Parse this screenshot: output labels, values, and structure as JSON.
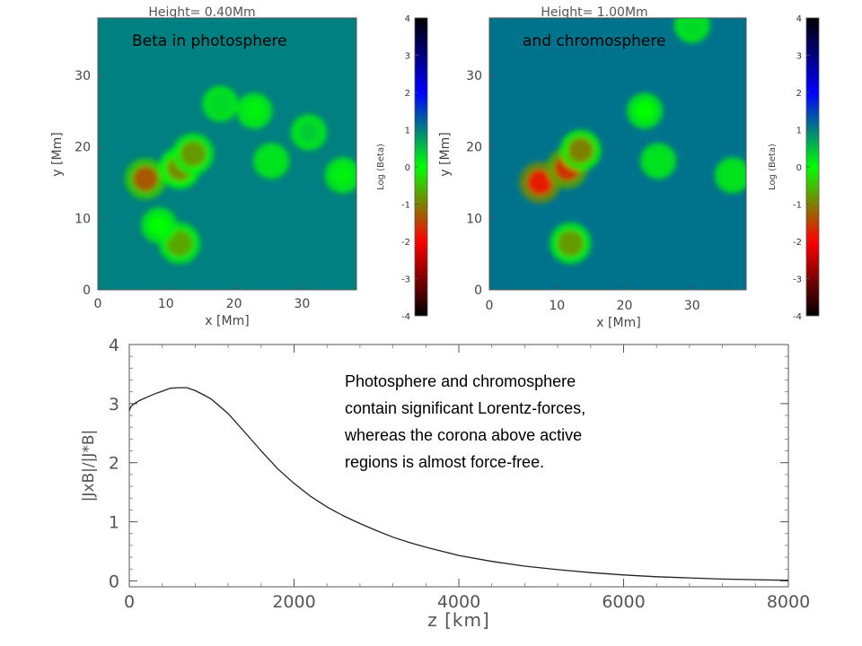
{
  "chart_data": [
    {
      "type": "heatmap",
      "title": "Height= 0.40Mm",
      "annotation": "Beta in photosphere",
      "xlabel": "x [Mm]",
      "ylabel": "y [Mm]",
      "xlim": [
        0,
        38
      ],
      "ylim": [
        0,
        38
      ],
      "xticks": [
        "0",
        "10",
        "20",
        "30"
      ],
      "yticks": [
        "0",
        "10",
        "20",
        "30"
      ],
      "colorbar": {
        "label": "Log (Beta)",
        "range": [
          -4,
          4
        ],
        "ticks": [
          "-4",
          "-3",
          "-2",
          "-1",
          "0",
          "1",
          "2",
          "3",
          "4"
        ],
        "colors": [
          "#000000",
          "#ff0000",
          "#00ff00",
          "#0000ff",
          "#000000"
        ]
      },
      "background_log_beta": 1.0,
      "blobs": [
        {
          "x": 7,
          "y": 15.5,
          "log_beta": -1.3
        },
        {
          "x": 12,
          "y": 17,
          "log_beta": -0.9
        },
        {
          "x": 14,
          "y": 19,
          "log_beta": -0.8
        },
        {
          "x": 12,
          "y": 6.5,
          "log_beta": -0.7
        },
        {
          "x": 9,
          "y": 9,
          "log_beta": 0
        },
        {
          "x": 23,
          "y": 25,
          "log_beta": 0.1
        },
        {
          "x": 25.5,
          "y": 18,
          "log_beta": 0.2
        },
        {
          "x": 36,
          "y": 16,
          "log_beta": 0.1
        },
        {
          "x": 18,
          "y": 26,
          "log_beta": 0.3
        },
        {
          "x": 31,
          "y": 22,
          "log_beta": 0.4
        }
      ]
    },
    {
      "type": "heatmap",
      "title": "Height= 1.00Mm",
      "annotation": "and chromosphere",
      "xlabel": "x [Mm]",
      "ylabel": "y [Mm]",
      "xlim": [
        0,
        38
      ],
      "ylim": [
        0,
        38
      ],
      "xticks": [
        "0",
        "10",
        "20",
        "30"
      ],
      "yticks": [
        "0",
        "10",
        "20",
        "30"
      ],
      "colorbar": {
        "label": "Log (Beta)",
        "range": [
          -4,
          4
        ],
        "ticks": [
          "-4",
          "-3",
          "-2",
          "-1",
          "0",
          "1",
          "2",
          "3",
          "4"
        ],
        "colors": [
          "#000000",
          "#ff0000",
          "#00ff00",
          "#0000ff",
          "#000000"
        ]
      },
      "background_log_beta": 1.1,
      "blobs": [
        {
          "x": 7.5,
          "y": 15,
          "log_beta": -1.8
        },
        {
          "x": 11.5,
          "y": 17,
          "log_beta": -1.6
        },
        {
          "x": 13.5,
          "y": 19.5,
          "log_beta": -1.0
        },
        {
          "x": 12,
          "y": 6.5,
          "log_beta": -0.8
        },
        {
          "x": 23,
          "y": 25,
          "log_beta": 0
        },
        {
          "x": 25,
          "y": 18,
          "log_beta": 0.2
        },
        {
          "x": 36,
          "y": 16,
          "log_beta": 0.2
        },
        {
          "x": 30,
          "y": 37,
          "log_beta": 0.3
        }
      ]
    },
    {
      "type": "line",
      "xlabel": "z [km]",
      "ylabel": "|JxB|/|J*B|",
      "xlim": [
        0,
        8000
      ],
      "ylim": [
        -0.1,
        4
      ],
      "xticks": [
        "0",
        "2000",
        "4000",
        "6000",
        "8000"
      ],
      "yticks": [
        "0",
        "1",
        "2",
        "3",
        "4"
      ],
      "x": [
        0,
        20,
        60,
        120,
        200,
        300,
        400,
        500,
        600,
        700,
        800,
        900,
        1000,
        1200,
        1400,
        1600,
        1800,
        2000,
        2200,
        2400,
        2600,
        2800,
        3000,
        3200,
        3400,
        3600,
        3800,
        4000,
        4400,
        4800,
        5200,
        5600,
        6000,
        6400,
        6800,
        7200,
        7600,
        8000
      ],
      "y": [
        2.88,
        2.95,
        3.0,
        3.05,
        3.1,
        3.16,
        3.21,
        3.26,
        3.27,
        3.27,
        3.22,
        3.15,
        3.07,
        2.83,
        2.52,
        2.2,
        1.9,
        1.65,
        1.43,
        1.25,
        1.1,
        0.97,
        0.85,
        0.74,
        0.65,
        0.57,
        0.5,
        0.43,
        0.33,
        0.25,
        0.19,
        0.14,
        0.1,
        0.07,
        0.05,
        0.03,
        0.02,
        0.01
      ],
      "annotation_lines": [
        "Photosphere and chromosphere",
        "contain significant Lorentz-forces,",
        "whereas the corona above active",
        "regions is  almost  force-free."
      ]
    }
  ]
}
